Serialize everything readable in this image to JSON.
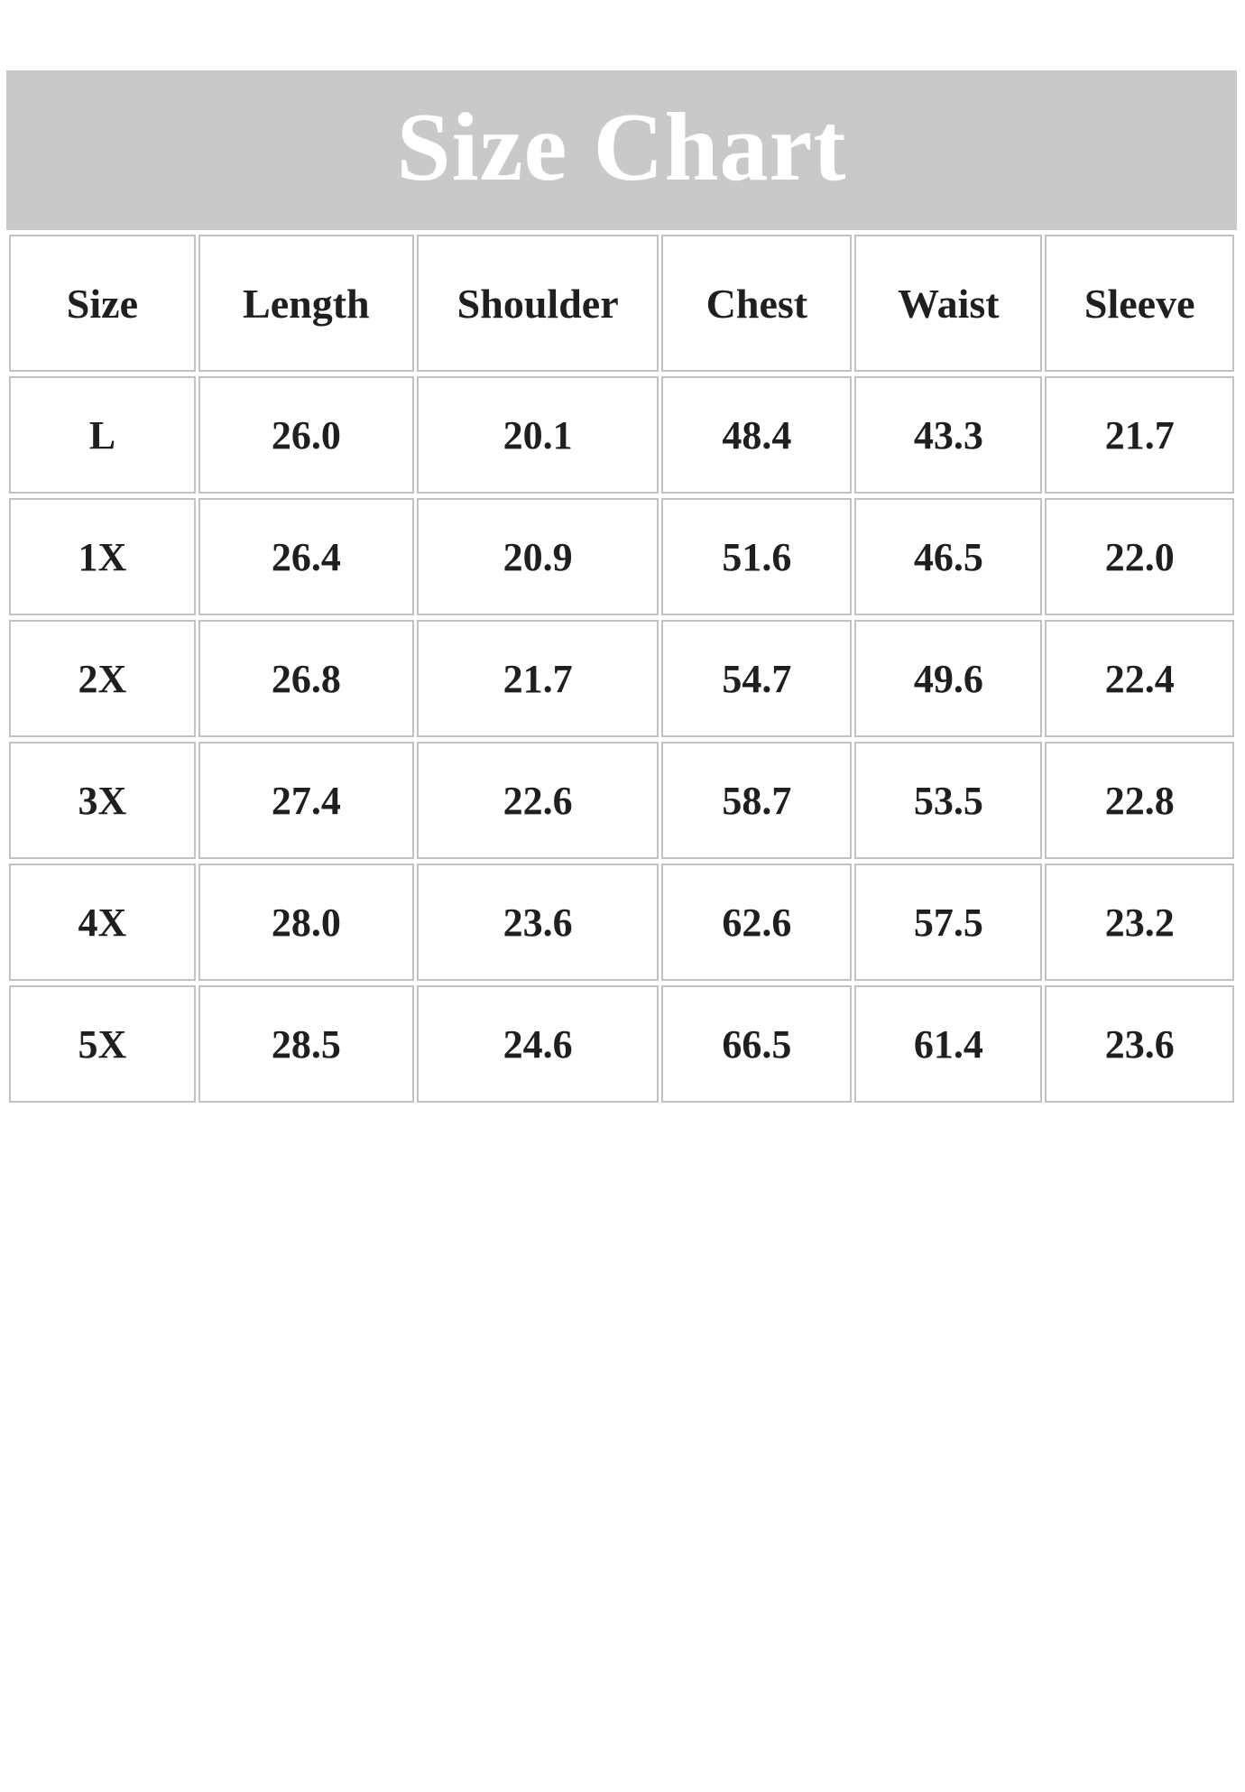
{
  "title": "Size Chart",
  "colors": {
    "title_band_bg": "#c9c9c9",
    "title_text": "#ffffff",
    "cell_border": "#c2c2c2",
    "cell_bg": "#ffffff",
    "text": "#1f1f1f",
    "page_bg": "#ffffff"
  },
  "chart_data": {
    "type": "table",
    "title": "Size Chart",
    "columns": [
      "Size",
      "Length",
      "Shoulder",
      "Chest",
      "Waist",
      "Sleeve"
    ],
    "rows": [
      [
        "L",
        "26.0",
        "20.1",
        "48.4",
        "43.3",
        "21.7"
      ],
      [
        "1X",
        "26.4",
        "20.9",
        "51.6",
        "46.5",
        "22.0"
      ],
      [
        "2X",
        "26.8",
        "21.7",
        "54.7",
        "49.6",
        "22.4"
      ],
      [
        "3X",
        "27.4",
        "22.6",
        "58.7",
        "53.5",
        "22.8"
      ],
      [
        "4X",
        "28.0",
        "23.6",
        "62.6",
        "57.5",
        "23.2"
      ],
      [
        "5X",
        "28.5",
        "24.6",
        "66.5",
        "61.4",
        "23.6"
      ]
    ]
  }
}
